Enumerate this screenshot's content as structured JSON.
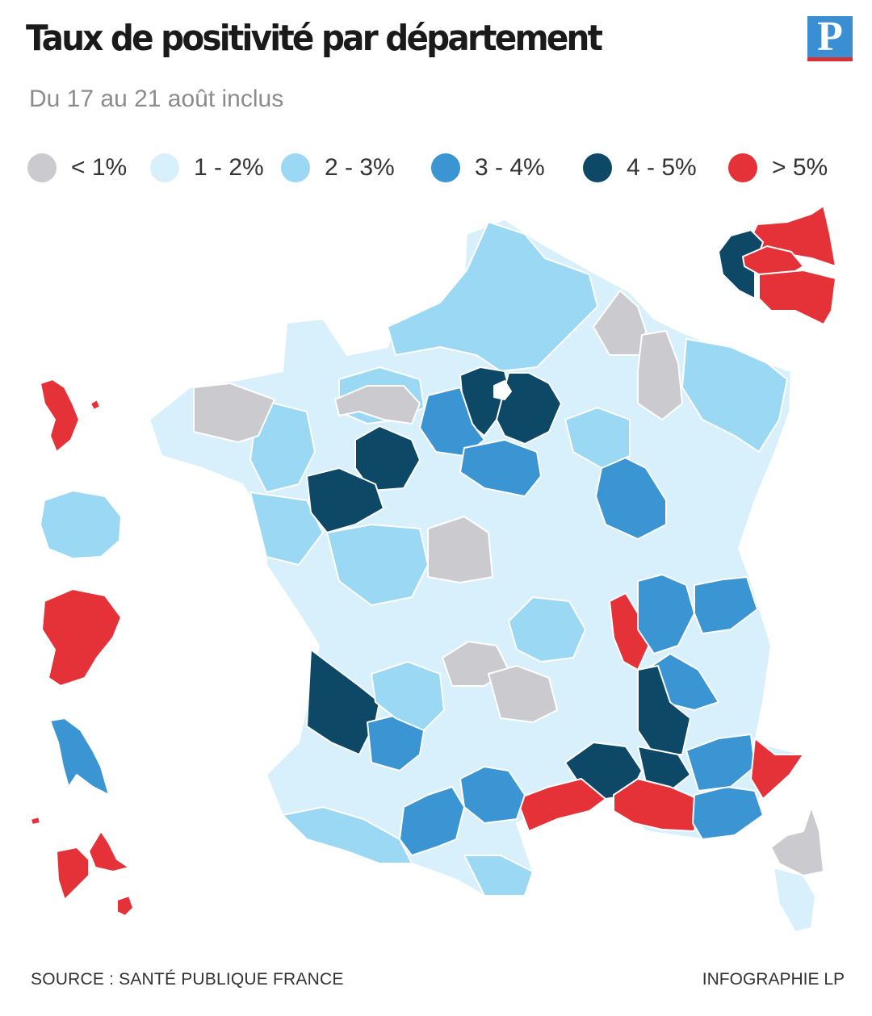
{
  "header": {
    "title": "Taux de positivité par département",
    "subtitle": "Du 17 au 21 août inclus",
    "logo_letter": "P"
  },
  "legend": [
    {
      "label": "< 1%",
      "color": "#cbcbcf"
    },
    {
      "label": "1 - 2%",
      "color": "#d8f0fb"
    },
    {
      "label": "2 - 3%",
      "color": "#9ad8f4"
    },
    {
      "label": "3 - 4%",
      "color": "#3a95d2"
    },
    {
      "label": "4 - 5%",
      "color": "#0d4867"
    },
    {
      "label": "> 5%",
      "color": "#e43238"
    }
  ],
  "footer": {
    "source": "SOURCE : SANTÉ PUBLIQUE FRANCE",
    "credit": "INFOGRAPHIE LP"
  }
}
